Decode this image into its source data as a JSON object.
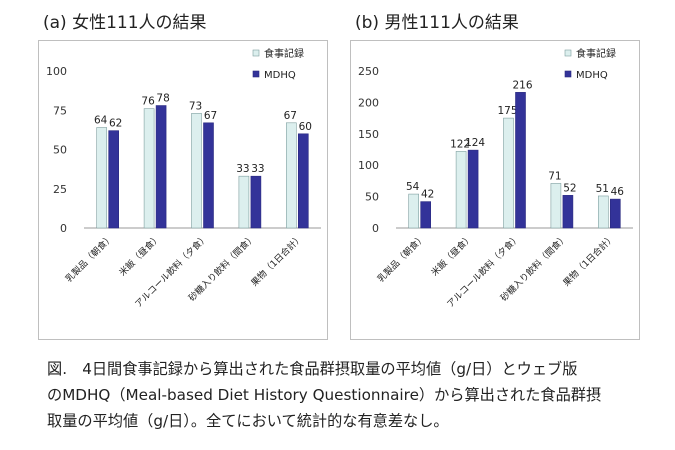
{
  "chart_data": [
    {
      "type": "bar",
      "title": "(a) 女性111人の結果",
      "categories": [
        "乳製品（朝食）",
        "米飯（昼食）",
        "アルコール飲料（夕食）",
        "砂糖入り飲料（間食）",
        "果物（1日合計）"
      ],
      "series": [
        {
          "name": "食事記録",
          "values": [
            64,
            76,
            73,
            33,
            67
          ],
          "color": "#dcefee"
        },
        {
          "name": "MDHQ",
          "values": [
            62,
            78,
            67,
            33,
            60
          ],
          "color": "#333399"
        }
      ],
      "ylim": [
        0,
        100
      ],
      "yticks": [
        0,
        25,
        50,
        75,
        100
      ],
      "grid": false,
      "legend_position": "top-right"
    },
    {
      "type": "bar",
      "title": "(b) 男性111人の結果",
      "categories": [
        "乳製品（朝食）",
        "米飯（昼食）",
        "アルコール飲料（夕食）",
        "砂糖入り飲料（間食）",
        "果物（1日合計）"
      ],
      "series": [
        {
          "name": "食事記録",
          "values": [
            54,
            122,
            175,
            71,
            51
          ],
          "color": "#dcefee"
        },
        {
          "name": "MDHQ",
          "values": [
            42,
            124,
            216,
            52,
            46
          ],
          "color": "#333399"
        }
      ],
      "ylim": [
        0,
        250
      ],
      "yticks": [
        0,
        50,
        100,
        150,
        200,
        250
      ],
      "grid": false,
      "legend_position": "top-right"
    }
  ],
  "caption": {
    "lines": [
      "図.　4日間食事記録から算出された食品群摂取量の平均値（g/日）とウェブ版",
      "のMDHQ（Meal-based Diet History Questionnaire）から算出された食品群摂",
      "取量の平均値（g/日）。全てにおいて統計的な有意差なし。"
    ]
  }
}
